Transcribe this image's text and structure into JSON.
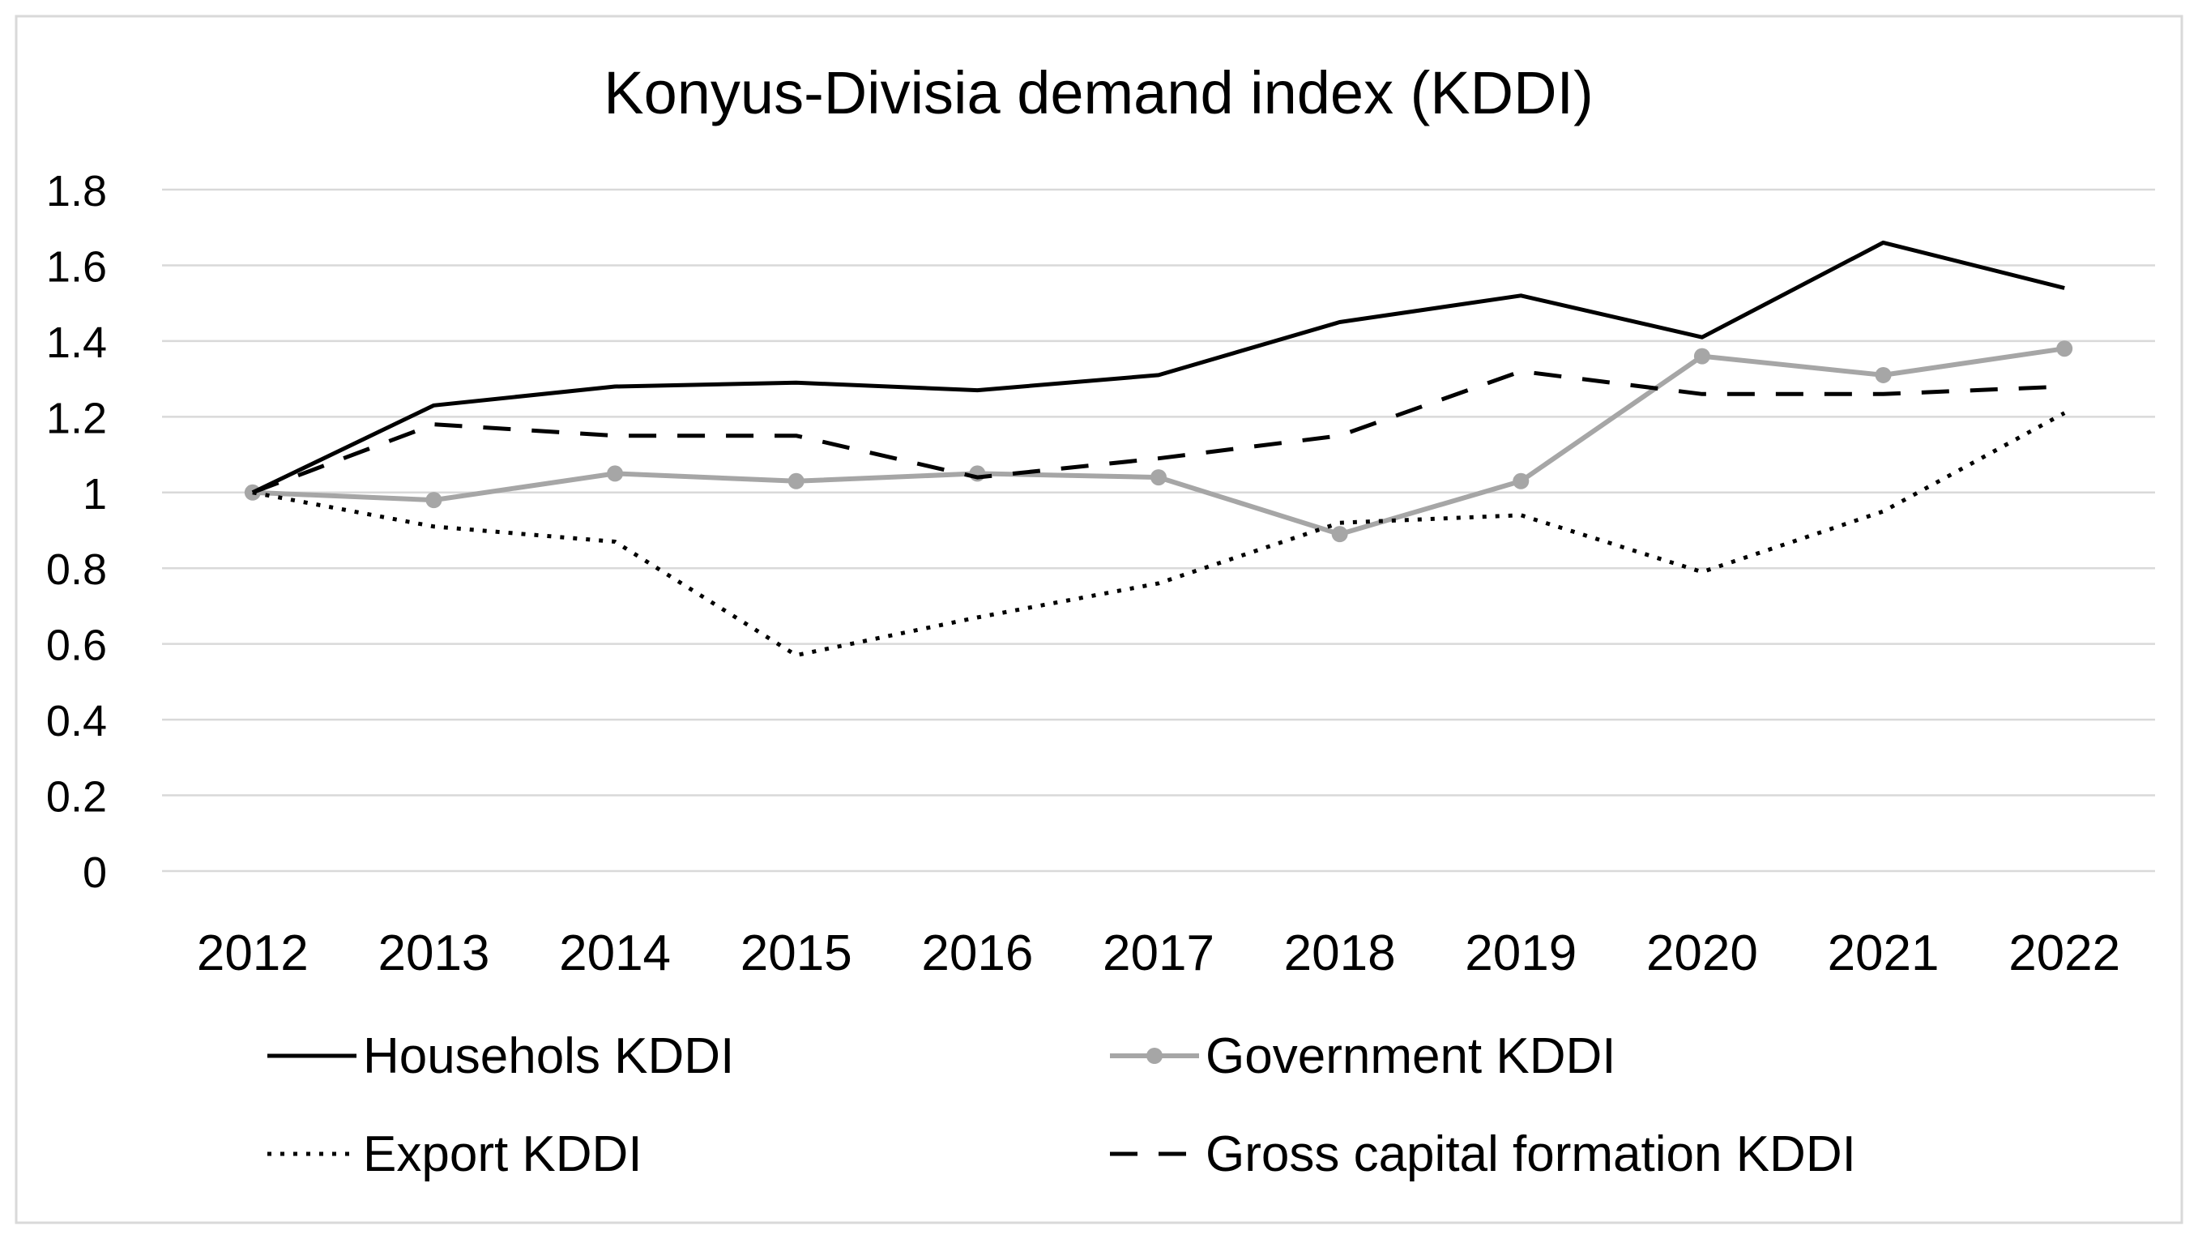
{
  "chart_data": {
    "type": "line",
    "title": "Konyus-Divisia demand index (KDDI)",
    "xlabel": "",
    "ylabel": "",
    "categories": [
      "2012",
      "2013",
      "2014",
      "2015",
      "2016",
      "2017",
      "2018",
      "2019",
      "2020",
      "2021",
      "2022"
    ],
    "ylim": [
      0,
      1.8
    ],
    "yticks": [
      "0",
      "0.2",
      "0.4",
      "0.6",
      "0.8",
      "1",
      "1.2",
      "1.4",
      "1.6",
      "1.8"
    ],
    "ytick_values": [
      0,
      0.2,
      0.4,
      0.6,
      0.8,
      1.0,
      1.2,
      1.4,
      1.6,
      1.8
    ],
    "grid": true,
    "legend_position": "bottom",
    "series": [
      {
        "name": "Househols KDDI",
        "style": "solid",
        "color": "#000000",
        "markers": false,
        "values": [
          1.0,
          1.23,
          1.28,
          1.29,
          1.27,
          1.31,
          1.45,
          1.52,
          1.41,
          1.66,
          1.54
        ]
      },
      {
        "name": "Government KDDI",
        "style": "solid",
        "color": "#a6a6a6",
        "markers": true,
        "values": [
          1.0,
          0.98,
          1.05,
          1.03,
          1.05,
          1.04,
          0.89,
          1.03,
          1.36,
          1.31,
          1.38
        ]
      },
      {
        "name": "Export KDDI",
        "style": "dotted",
        "color": "#000000",
        "markers": false,
        "values": [
          1.0,
          0.91,
          0.87,
          0.57,
          0.67,
          0.76,
          0.92,
          0.94,
          0.79,
          0.95,
          1.21
        ]
      },
      {
        "name": "Gross capital formation KDDI",
        "style": "dashed",
        "color": "#000000",
        "markers": false,
        "values": [
          1.0,
          1.18,
          1.15,
          1.15,
          1.04,
          1.09,
          1.15,
          1.32,
          1.26,
          1.26,
          1.28
        ]
      }
    ]
  }
}
